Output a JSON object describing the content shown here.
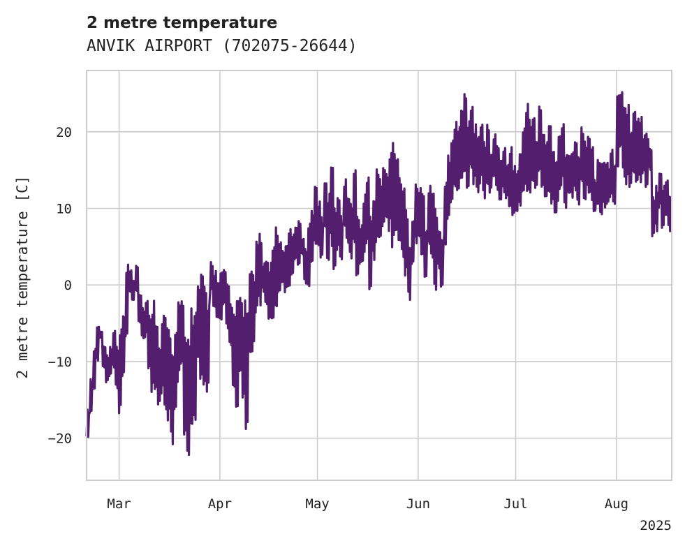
{
  "chart_data": {
    "type": "line",
    "title": "2 metre temperature",
    "subtitle": "ANVIK AIRPORT (702075-26644)",
    "xlabel": "",
    "ylabel": "2 metre temperature [C]",
    "xlim": [
      "2025-02-19",
      "2025-08-18"
    ],
    "ylim": [
      -25.5,
      28
    ],
    "x_ticks": [
      {
        "date": "2025-03-01",
        "label": "Mar"
      },
      {
        "date": "2025-04-01",
        "label": "Apr"
      },
      {
        "date": "2025-05-01",
        "label": "May"
      },
      {
        "date": "2025-06-01",
        "label": "Jun"
      },
      {
        "date": "2025-07-01",
        "label": "Jul"
      },
      {
        "date": "2025-08-01",
        "label": "Aug"
      }
    ],
    "x_offset_label": "2025",
    "y_ticks": [
      {
        "value": -20,
        "label": "−20"
      },
      {
        "value": -10,
        "label": "−10"
      },
      {
        "value": 0,
        "label": "0"
      },
      {
        "value": 10,
        "label": "10"
      },
      {
        "value": 20,
        "label": "20"
      }
    ],
    "grid": true,
    "legend": "none",
    "line_color": "#541e6e",
    "series": [
      {
        "x": [
          "2025-02-19",
          "2025-02-20",
          "2025-02-21",
          "2025-02-22",
          "2025-02-23",
          "2025-02-24",
          "2025-02-25",
          "2025-02-26",
          "2025-02-27",
          "2025-02-28",
          "2025-03-01",
          "2025-03-02",
          "2025-03-03",
          "2025-03-04",
          "2025-03-05",
          "2025-03-06",
          "2025-03-07",
          "2025-03-08",
          "2025-03-09",
          "2025-03-10",
          "2025-03-11",
          "2025-03-12",
          "2025-03-13",
          "2025-03-14",
          "2025-03-15",
          "2025-03-16",
          "2025-03-17",
          "2025-03-18",
          "2025-03-19",
          "2025-03-20",
          "2025-03-21",
          "2025-03-22",
          "2025-03-23",
          "2025-03-24",
          "2025-03-25",
          "2025-03-26",
          "2025-03-27",
          "2025-03-28",
          "2025-03-29",
          "2025-03-30",
          "2025-03-31",
          "2025-04-01",
          "2025-04-02",
          "2025-04-03",
          "2025-04-04",
          "2025-04-05",
          "2025-04-06",
          "2025-04-07",
          "2025-04-08",
          "2025-04-09",
          "2025-04-10",
          "2025-04-11",
          "2025-04-12",
          "2025-04-13",
          "2025-04-14",
          "2025-04-15",
          "2025-04-16",
          "2025-04-17",
          "2025-04-18",
          "2025-04-19",
          "2025-04-20",
          "2025-04-21",
          "2025-04-22",
          "2025-04-23",
          "2025-04-24",
          "2025-04-25",
          "2025-04-26",
          "2025-04-27",
          "2025-04-28",
          "2025-04-29",
          "2025-04-30",
          "2025-05-01",
          "2025-05-02",
          "2025-05-03",
          "2025-05-04",
          "2025-05-05",
          "2025-05-06",
          "2025-05-07",
          "2025-05-08",
          "2025-05-09",
          "2025-05-10",
          "2025-05-11",
          "2025-05-12",
          "2025-05-13",
          "2025-05-14",
          "2025-05-15",
          "2025-05-16",
          "2025-05-17",
          "2025-05-18",
          "2025-05-19",
          "2025-05-20",
          "2025-05-21",
          "2025-05-22",
          "2025-05-23",
          "2025-05-24",
          "2025-05-25",
          "2025-05-26",
          "2025-05-27",
          "2025-05-28",
          "2025-05-29",
          "2025-05-30",
          "2025-05-31",
          "2025-06-01",
          "2025-06-02",
          "2025-06-03",
          "2025-06-04",
          "2025-06-05",
          "2025-06-06",
          "2025-06-07",
          "2025-06-08",
          "2025-06-09",
          "2025-06-10",
          "2025-06-11",
          "2025-06-12",
          "2025-06-13",
          "2025-06-14",
          "2025-06-15",
          "2025-06-16",
          "2025-06-17",
          "2025-06-18",
          "2025-06-19",
          "2025-06-20",
          "2025-06-21",
          "2025-06-22",
          "2025-06-23",
          "2025-06-24",
          "2025-06-25",
          "2025-06-26",
          "2025-06-27",
          "2025-06-28",
          "2025-06-29",
          "2025-06-30",
          "2025-07-01",
          "2025-07-02",
          "2025-07-03",
          "2025-07-04",
          "2025-07-05",
          "2025-07-06",
          "2025-07-07",
          "2025-07-08",
          "2025-07-09",
          "2025-07-10",
          "2025-07-11",
          "2025-07-12",
          "2025-07-13",
          "2025-07-14",
          "2025-07-15",
          "2025-07-16",
          "2025-07-17",
          "2025-07-18",
          "2025-07-19",
          "2025-07-20",
          "2025-07-21",
          "2025-07-22",
          "2025-07-23",
          "2025-07-24",
          "2025-07-25",
          "2025-07-26",
          "2025-07-27",
          "2025-07-28",
          "2025-07-29",
          "2025-07-30",
          "2025-07-31",
          "2025-08-01",
          "2025-08-02",
          "2025-08-03",
          "2025-08-04",
          "2025-08-05",
          "2025-08-06",
          "2025-08-07",
          "2025-08-08",
          "2025-08-09",
          "2025-08-10",
          "2025-08-11",
          "2025-08-12",
          "2025-08-13",
          "2025-08-14",
          "2025-08-15",
          "2025-08-16",
          "2025-08-17"
        ],
        "min": [
          -20,
          -17,
          -14,
          -10,
          -7,
          -11,
          -13,
          -12,
          -11,
          -14,
          -17,
          -12,
          -7,
          -1,
          -2,
          -1,
          -5,
          -7,
          -7,
          -11,
          -14,
          -15,
          -16,
          -15,
          -17,
          -18,
          -21,
          -17,
          -13,
          -11,
          -20,
          -23,
          -19,
          -18,
          -10,
          -13,
          -15,
          -14,
          -1,
          -3,
          -5,
          -5,
          -3,
          -6,
          -8,
          -14,
          -17,
          -12,
          -16,
          -19,
          -9,
          -9,
          -4,
          -3,
          -1,
          -3,
          -5,
          -5,
          -3,
          -2,
          0,
          -1,
          -1,
          1,
          3,
          2,
          4,
          0,
          -1,
          3,
          5,
          5,
          3,
          7,
          3,
          5,
          2,
          4,
          3,
          7,
          5,
          3,
          5,
          0,
          2,
          3,
          5,
          -1,
          3,
          5,
          6,
          7,
          8,
          7,
          4,
          6,
          5,
          3,
          1,
          -2,
          2,
          5,
          6,
          4,
          1,
          5,
          3,
          -1,
          2,
          -1,
          5,
          8,
          10,
          12,
          11,
          13,
          14,
          12,
          15,
          13,
          12,
          13,
          11,
          13,
          12,
          14,
          12,
          11,
          12,
          11,
          10,
          9,
          9,
          10,
          11,
          12,
          11,
          13,
          12,
          14,
          12,
          11,
          12,
          10,
          9,
          11,
          13,
          10,
          11,
          11,
          12,
          10,
          13,
          11,
          12,
          11,
          9,
          10,
          9,
          10,
          10,
          11,
          10,
          15,
          17,
          14,
          13,
          12,
          14,
          13,
          13,
          14,
          12,
          15,
          6,
          7,
          10,
          7,
          9,
          7
        ],
        "max": [
          -16,
          -12,
          -8,
          -5,
          -6,
          -8,
          -9,
          -8,
          -6,
          -8,
          -5,
          -3,
          3,
          2,
          1,
          3,
          -1,
          -3,
          -2,
          -4,
          -2,
          -5,
          -8,
          -4,
          -4,
          -5,
          -8,
          -5,
          -2,
          -1,
          -5,
          -7,
          -3,
          -2,
          0,
          2,
          0,
          -2,
          3,
          2,
          1,
          2,
          2,
          1,
          -2,
          -3,
          -2,
          -1,
          -2,
          -3,
          2,
          2,
          6,
          7,
          3,
          4,
          3,
          6,
          8,
          6,
          5,
          6,
          8,
          7,
          8,
          9,
          6,
          5,
          9,
          10,
          13,
          11,
          9,
          14,
          12,
          16,
          10,
          12,
          9,
          14,
          12,
          11,
          15,
          9,
          8,
          12,
          15,
          10,
          12,
          16,
          14,
          16,
          15,
          18,
          19,
          17,
          14,
          13,
          10,
          6,
          9,
          14,
          13,
          12,
          8,
          13,
          12,
          10,
          7,
          6,
          14,
          17,
          20,
          22,
          21,
          23,
          25,
          22,
          24,
          21,
          20,
          22,
          19,
          21,
          18,
          20,
          19,
          17,
          18,
          16,
          18,
          16,
          15,
          18,
          21,
          24,
          22,
          23,
          20,
          24,
          20,
          19,
          21,
          18,
          17,
          20,
          22,
          17,
          18,
          18,
          19,
          17,
          21,
          19,
          20,
          18,
          14,
          17,
          16,
          16,
          16,
          18,
          16,
          25,
          26,
          24,
          24,
          21,
          23,
          22,
          22,
          20,
          20,
          18,
          12,
          13,
          15,
          13,
          14,
          12
        ]
      }
    ]
  }
}
